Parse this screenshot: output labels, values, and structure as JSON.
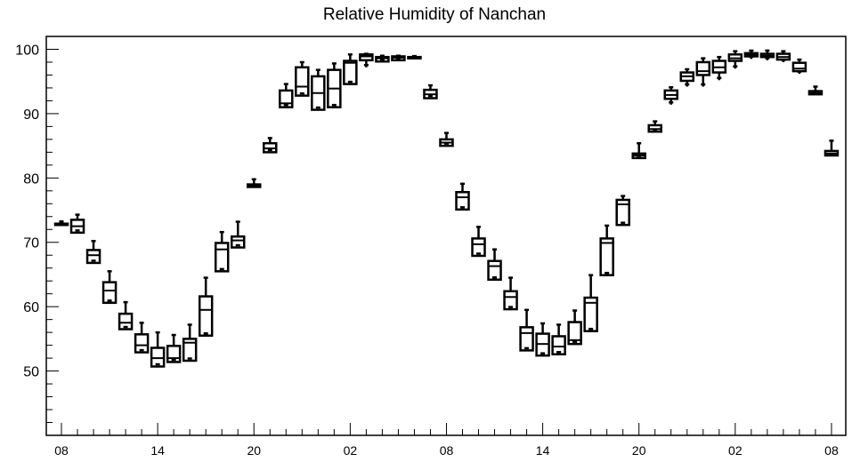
{
  "chart_data": {
    "type": "box",
    "title": "Relative Humidity of Nanchan",
    "xlabel": "",
    "ylabel": "",
    "xlim": [
      0,
      47
    ],
    "ylim": [
      40,
      102
    ],
    "y_ticks": [
      50,
      60,
      70,
      80,
      90,
      100
    ],
    "x_tick_labels": [
      {
        "x": 0,
        "label": "08"
      },
      {
        "x": 6,
        "label": "14"
      },
      {
        "x": 12,
        "label": "20"
      },
      {
        "x": 18,
        "label": "02"
      },
      {
        "x": 24,
        "label": "08"
      },
      {
        "x": 30,
        "label": "14"
      },
      {
        "x": 36,
        "label": "20"
      },
      {
        "x": 42,
        "label": "02"
      },
      {
        "x": 48,
        "label": "08"
      }
    ],
    "grid": false,
    "legend": "none",
    "boxes": [
      {
        "x": 0,
        "low": 72.9,
        "q1": 72.9,
        "median": 72.9,
        "q3": 72.9,
        "high": 72.9
      },
      {
        "x": 1,
        "low": 71.5,
        "q1": 71.5,
        "median": 72.5,
        "q3": 73.5,
        "high": 74.3
      },
      {
        "x": 2,
        "low": 66.8,
        "q1": 66.8,
        "median": 68.0,
        "q3": 68.8,
        "high": 70.2
      },
      {
        "x": 3,
        "low": 60.6,
        "q1": 60.6,
        "median": 62.5,
        "q3": 63.8,
        "high": 65.5
      },
      {
        "x": 4,
        "low": 56.5,
        "q1": 56.5,
        "median": 57.5,
        "q3": 58.9,
        "high": 60.7
      },
      {
        "x": 5,
        "low": 52.9,
        "q1": 52.9,
        "median": 54.0,
        "q3": 55.7,
        "high": 57.5
      },
      {
        "x": 6,
        "low": 50.7,
        "q1": 50.7,
        "median": 52.0,
        "q3": 53.6,
        "high": 56.0
      },
      {
        "x": 7,
        "low": 51.4,
        "q1": 51.4,
        "median": 52.0,
        "q3": 53.9,
        "high": 55.6
      },
      {
        "x": 8,
        "low": 51.6,
        "q1": 51.6,
        "median": 54.4,
        "q3": 55.0,
        "high": 57.2
      },
      {
        "x": 9,
        "low": 55.5,
        "q1": 55.5,
        "median": 59.5,
        "q3": 61.6,
        "high": 64.5
      },
      {
        "x": 10,
        "low": 65.5,
        "q1": 65.5,
        "median": 68.9,
        "q3": 69.9,
        "high": 71.6
      },
      {
        "x": 11,
        "low": 69.2,
        "q1": 69.2,
        "median": 70.3,
        "q3": 70.9,
        "high": 73.2
      },
      {
        "x": 12,
        "low": 78.6,
        "q1": 78.6,
        "median": 78.8,
        "q3": 79.0,
        "high": 79.8
      },
      {
        "x": 13,
        "low": 84.0,
        "q1": 84.0,
        "median": 84.6,
        "q3": 85.4,
        "high": 86.2
      },
      {
        "x": 14,
        "low": 91.0,
        "q1": 91.0,
        "median": 91.6,
        "q3": 93.6,
        "high": 94.6
      },
      {
        "x": 15,
        "low": 92.8,
        "q1": 92.8,
        "median": 94.2,
        "q3": 97.2,
        "high": 98.0
      },
      {
        "x": 16,
        "low": 90.6,
        "q1": 90.6,
        "median": 93.2,
        "q3": 95.8,
        "high": 96.8
      },
      {
        "x": 17,
        "low": 91.0,
        "q1": 91.0,
        "median": 93.9,
        "q3": 96.8,
        "high": 97.8
      },
      {
        "x": 18,
        "low": 94.6,
        "q1": 94.6,
        "median": 97.9,
        "q3": 98.2,
        "high": 99.2
      },
      {
        "x": 19,
        "low": 97.2,
        "q1": 98.3,
        "median": 98.9,
        "q3": 99.2,
        "high": 99.3
      },
      {
        "x": 20,
        "low": 98.1,
        "q1": 98.1,
        "median": 98.6,
        "q3": 98.8,
        "high": 99.0
      },
      {
        "x": 21,
        "low": 98.3,
        "q1": 98.3,
        "median": 98.7,
        "q3": 98.9,
        "high": 99.0
      },
      {
        "x": 22,
        "low": 98.6,
        "q1": 98.6,
        "median": 98.7,
        "q3": 98.8,
        "high": 98.8
      },
      {
        "x": 23,
        "low": 92.4,
        "q1": 92.4,
        "median": 93.0,
        "q3": 93.7,
        "high": 94.4
      },
      {
        "x": 24,
        "low": 85.0,
        "q1": 85.0,
        "median": 85.5,
        "q3": 86.0,
        "high": 87.0
      },
      {
        "x": 25,
        "low": 75.1,
        "q1": 75.1,
        "median": 77.0,
        "q3": 77.8,
        "high": 79.1
      },
      {
        "x": 26,
        "low": 67.9,
        "q1": 67.9,
        "median": 69.7,
        "q3": 70.6,
        "high": 72.4
      },
      {
        "x": 27,
        "low": 64.2,
        "q1": 64.2,
        "median": 66.3,
        "q3": 67.1,
        "high": 68.9
      },
      {
        "x": 28,
        "low": 59.6,
        "q1": 59.6,
        "median": 61.5,
        "q3": 62.4,
        "high": 64.5
      },
      {
        "x": 29,
        "low": 53.2,
        "q1": 53.2,
        "median": 55.9,
        "q3": 56.8,
        "high": 59.5
      },
      {
        "x": 30,
        "low": 52.4,
        "q1": 52.4,
        "median": 54.2,
        "q3": 55.8,
        "high": 57.4
      },
      {
        "x": 31,
        "low": 52.6,
        "q1": 52.6,
        "median": 53.8,
        "q3": 55.4,
        "high": 57.2
      },
      {
        "x": 32,
        "low": 54.2,
        "q1": 54.2,
        "median": 54.8,
        "q3": 57.6,
        "high": 59.4
      },
      {
        "x": 33,
        "low": 56.2,
        "q1": 56.2,
        "median": 60.6,
        "q3": 61.4,
        "high": 64.9
      },
      {
        "x": 34,
        "low": 64.9,
        "q1": 64.9,
        "median": 69.9,
        "q3": 70.6,
        "high": 72.6
      },
      {
        "x": 35,
        "low": 72.7,
        "q1": 72.7,
        "median": 75.9,
        "q3": 76.6,
        "high": 77.2
      },
      {
        "x": 36,
        "low": 83.1,
        "q1": 83.1,
        "median": 83.5,
        "q3": 83.8,
        "high": 85.4
      },
      {
        "x": 37,
        "low": 87.2,
        "q1": 87.2,
        "median": 87.6,
        "q3": 88.2,
        "high": 88.8
      },
      {
        "x": 38,
        "low": 91.4,
        "q1": 92.3,
        "median": 92.9,
        "q3": 93.6,
        "high": 94.1
      },
      {
        "x": 39,
        "low": 94.2,
        "q1": 95.1,
        "median": 95.8,
        "q3": 96.4,
        "high": 96.9
      },
      {
        "x": 40,
        "low": 94.2,
        "q1": 96.0,
        "median": 96.6,
        "q3": 98.0,
        "high": 98.6
      },
      {
        "x": 41,
        "low": 95.2,
        "q1": 96.4,
        "median": 97.2,
        "q3": 98.2,
        "high": 98.8
      },
      {
        "x": 42,
        "low": 97.0,
        "q1": 98.2,
        "median": 98.6,
        "q3": 99.2,
        "high": 99.7
      },
      {
        "x": 43,
        "low": 98.5,
        "q1": 98.9,
        "median": 99.1,
        "q3": 99.4,
        "high": 99.8
      },
      {
        "x": 44,
        "low": 98.3,
        "q1": 98.8,
        "median": 99.0,
        "q3": 99.3,
        "high": 99.8
      },
      {
        "x": 45,
        "low": 98.0,
        "q1": 98.4,
        "median": 98.8,
        "q3": 99.3,
        "high": 99.7
      },
      {
        "x": 46,
        "low": 96.2,
        "q1": 96.6,
        "median": 97.0,
        "q3": 97.9,
        "high": 98.4
      },
      {
        "x": 47,
        "low": 92.9,
        "q1": 93.0,
        "median": 93.2,
        "q3": 93.5,
        "high": 94.2
      },
      {
        "x": 48,
        "low": 83.4,
        "q1": 83.5,
        "median": 83.8,
        "q3": 84.2,
        "high": 85.8
      }
    ]
  }
}
